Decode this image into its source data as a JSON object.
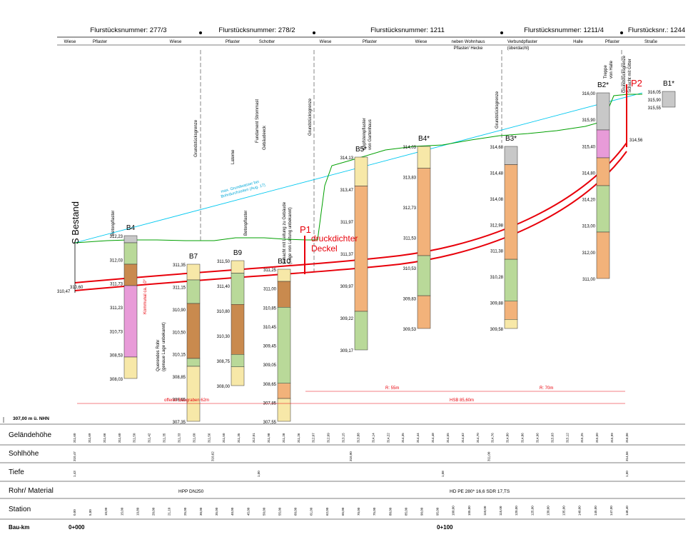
{
  "header": {
    "parcels": [
      {
        "label": "Flurstücksnummer: 277/3"
      },
      {
        "label": "Flurstücksnummer: 278/2"
      },
      {
        "label": "Flurstücksnummer: 1211"
      },
      {
        "label": "Flurstücksnummer: 1211/4"
      },
      {
        "label": "Flurstücksnr.: 1244"
      }
    ],
    "surfaces": [
      "Wiese",
      "Pflaster",
      "Wiese",
      "Pflaster",
      "Schotter",
      "Wiese",
      "Pflaster",
      "Wiese",
      "neben Wohnhaus",
      "Pflaster/ Hecke",
      "Verbundpflaster",
      "(überdacht)",
      "Halle",
      "Pflaster",
      "Straße"
    ]
  },
  "drawing": {
    "start_label": "S Bestand",
    "start_elev": "310,47",
    "start_elev2": "310,60",
    "p1_label": "P1",
    "p1_desc1": "druckdichter",
    "p1_desc2": "Deckel",
    "p2_label": "P2",
    "p2_elev": "314,56",
    "gw_label1": "max. Grundwasser bei",
    "gw_label2": "Bohrdurchzeiten (Aug. 17)",
    "boreholes": [
      {
        "name": "B4",
        "top": "312,23",
        "levels": [
          "312,03",
          "311,73",
          "311,23",
          "310,73",
          "308,53",
          "308,03"
        ]
      },
      {
        "name": "B7",
        "top": "311,35",
        "levels": [
          "311,15",
          "310,90",
          "310,50",
          "310,15",
          "308,85",
          "308,65",
          "307,35"
        ]
      },
      {
        "name": "B9",
        "top": "311,50",
        "levels": [
          "311,40",
          "310,80",
          "310,30",
          "308,75",
          "308,00"
        ]
      },
      {
        "name": "B10",
        "top": "311,25",
        "levels": [
          "311,00",
          "310,85",
          "310,45",
          "309,45",
          "309,05",
          "308,65",
          "307,85",
          "307,55"
        ]
      },
      {
        "name": "B5*",
        "top": "314,13",
        "levels": [
          "313,47",
          "311,97",
          "311,37",
          "309,97",
          "309,22",
          "309,17"
        ]
      },
      {
        "name": "B4*",
        "top": "314,03",
        "levels": [
          "313,83",
          "312,73",
          "311,53",
          "310,53",
          "309,83",
          "309,53"
        ]
      },
      {
        "name": "B3*",
        "top": "314,68",
        "levels": [
          "314,48",
          "314,08",
          "312,98",
          "311,38",
          "310,28",
          "309,88",
          "309,58"
        ]
      },
      {
        "name": "B2*",
        "top": "316,00",
        "levels": [
          "315,90",
          "315,40",
          "314,80",
          "314,20",
          "313,00",
          "312,00",
          "311,00"
        ]
      },
      {
        "name": "B1*",
        "top": "316,05",
        "levels": [
          "315,90",
          "315,55"
        ]
      }
    ],
    "annotations": {
      "grenze1": "Grundstücksgrenze",
      "laterne": "Laterne",
      "fundament": "Fundament Strommast",
      "gebaeude": "Gebäudeeck",
      "betonpflaster": "Betonpflaster",
      "schacht": "Schacht mit Leitung zu Gebäude",
      "schacht2": "(Lage von Leitung unbekannt)",
      "kopfstein": "Kopfsteinpflaster",
      "garten": "von Gartenhaus",
      "treppe": "Treppe",
      "halle": "von Halle",
      "grenze_schacht": "Schacht mit Gitter",
      "querrohr1": "Querendes Rohr",
      "querrohr2": "(genaue Lage unbekannt)",
      "kommun": "Kommunal ca. 10°",
      "baugraben": "offener Baugraben 62m",
      "r55": "R: 55m",
      "r70": "R: 70m",
      "hsb": "HSB 85,60m"
    }
  },
  "table": {
    "datum": "307,00 m ü. NHN",
    "rows": [
      "Geländehöhe",
      "Sohlhöhe",
      "Tiefe",
      "Rohr/ Material",
      "Station"
    ],
    "material1": "HPP DN250",
    "material2": "HD PE 280* 16,6  SDR 17,TS",
    "baukm_label": "Bau-km",
    "km0": "0+000",
    "km100": "0+100",
    "gelaende": [
      "311,60",
      "311,69",
      "311,66",
      "311,60",
      "311,50",
      "311,42",
      "311,35",
      "311,33",
      "311,60",
      "311,56",
      "311,50",
      "311,35",
      "312,01",
      "311,98",
      "311,28",
      "311,26",
      "312,07",
      "312,09",
      "313,15",
      "313,88",
      "314,14",
      "314,22",
      "314,35",
      "314,44",
      "314,48",
      "314,55",
      "314,62",
      "314,70",
      "314,76",
      "314,80",
      "314,86",
      "314,96",
      "315,03",
      "315,12",
      "315,25",
      "315,50",
      "315,99",
      "316,06"
    ],
    "sohle": [
      "310,47",
      "310,62",
      "310,90",
      "311,00",
      "314,56"
    ],
    "tiefe": [
      "1,43",
      "1,00",
      "1,08",
      "1,50"
    ],
    "station": [
      "0,00",
      "5,00",
      "10,00",
      "15,00",
      "19,80",
      "20,00",
      "21,10",
      "25,00",
      "30,00",
      "35,00",
      "40,00",
      "45,00",
      "50,00",
      "55,00",
      "60,00",
      "61,00",
      "62,00",
      "65,00",
      "70,00",
      "75,00",
      "80,00",
      "85,00",
      "90,00",
      "95,00",
      "100,00",
      "105,00",
      "110,00",
      "115,00",
      "120,00",
      "125,00",
      "130,00",
      "135,00",
      "140,00",
      "145,00",
      "147,00",
      "148,40"
    ]
  },
  "colors": {
    "pipe": "#e8000a",
    "terrain": "#00a000",
    "groundwater": "#00c8f0",
    "fill_fine": "#f7e8a8",
    "fill_sand": "#f2b27a",
    "fill_clay": "#e89bd8",
    "fill_gravel": "#b9d999",
    "fill_peat": "#c98a4e",
    "fill_concrete": "#c8c8c8"
  }
}
